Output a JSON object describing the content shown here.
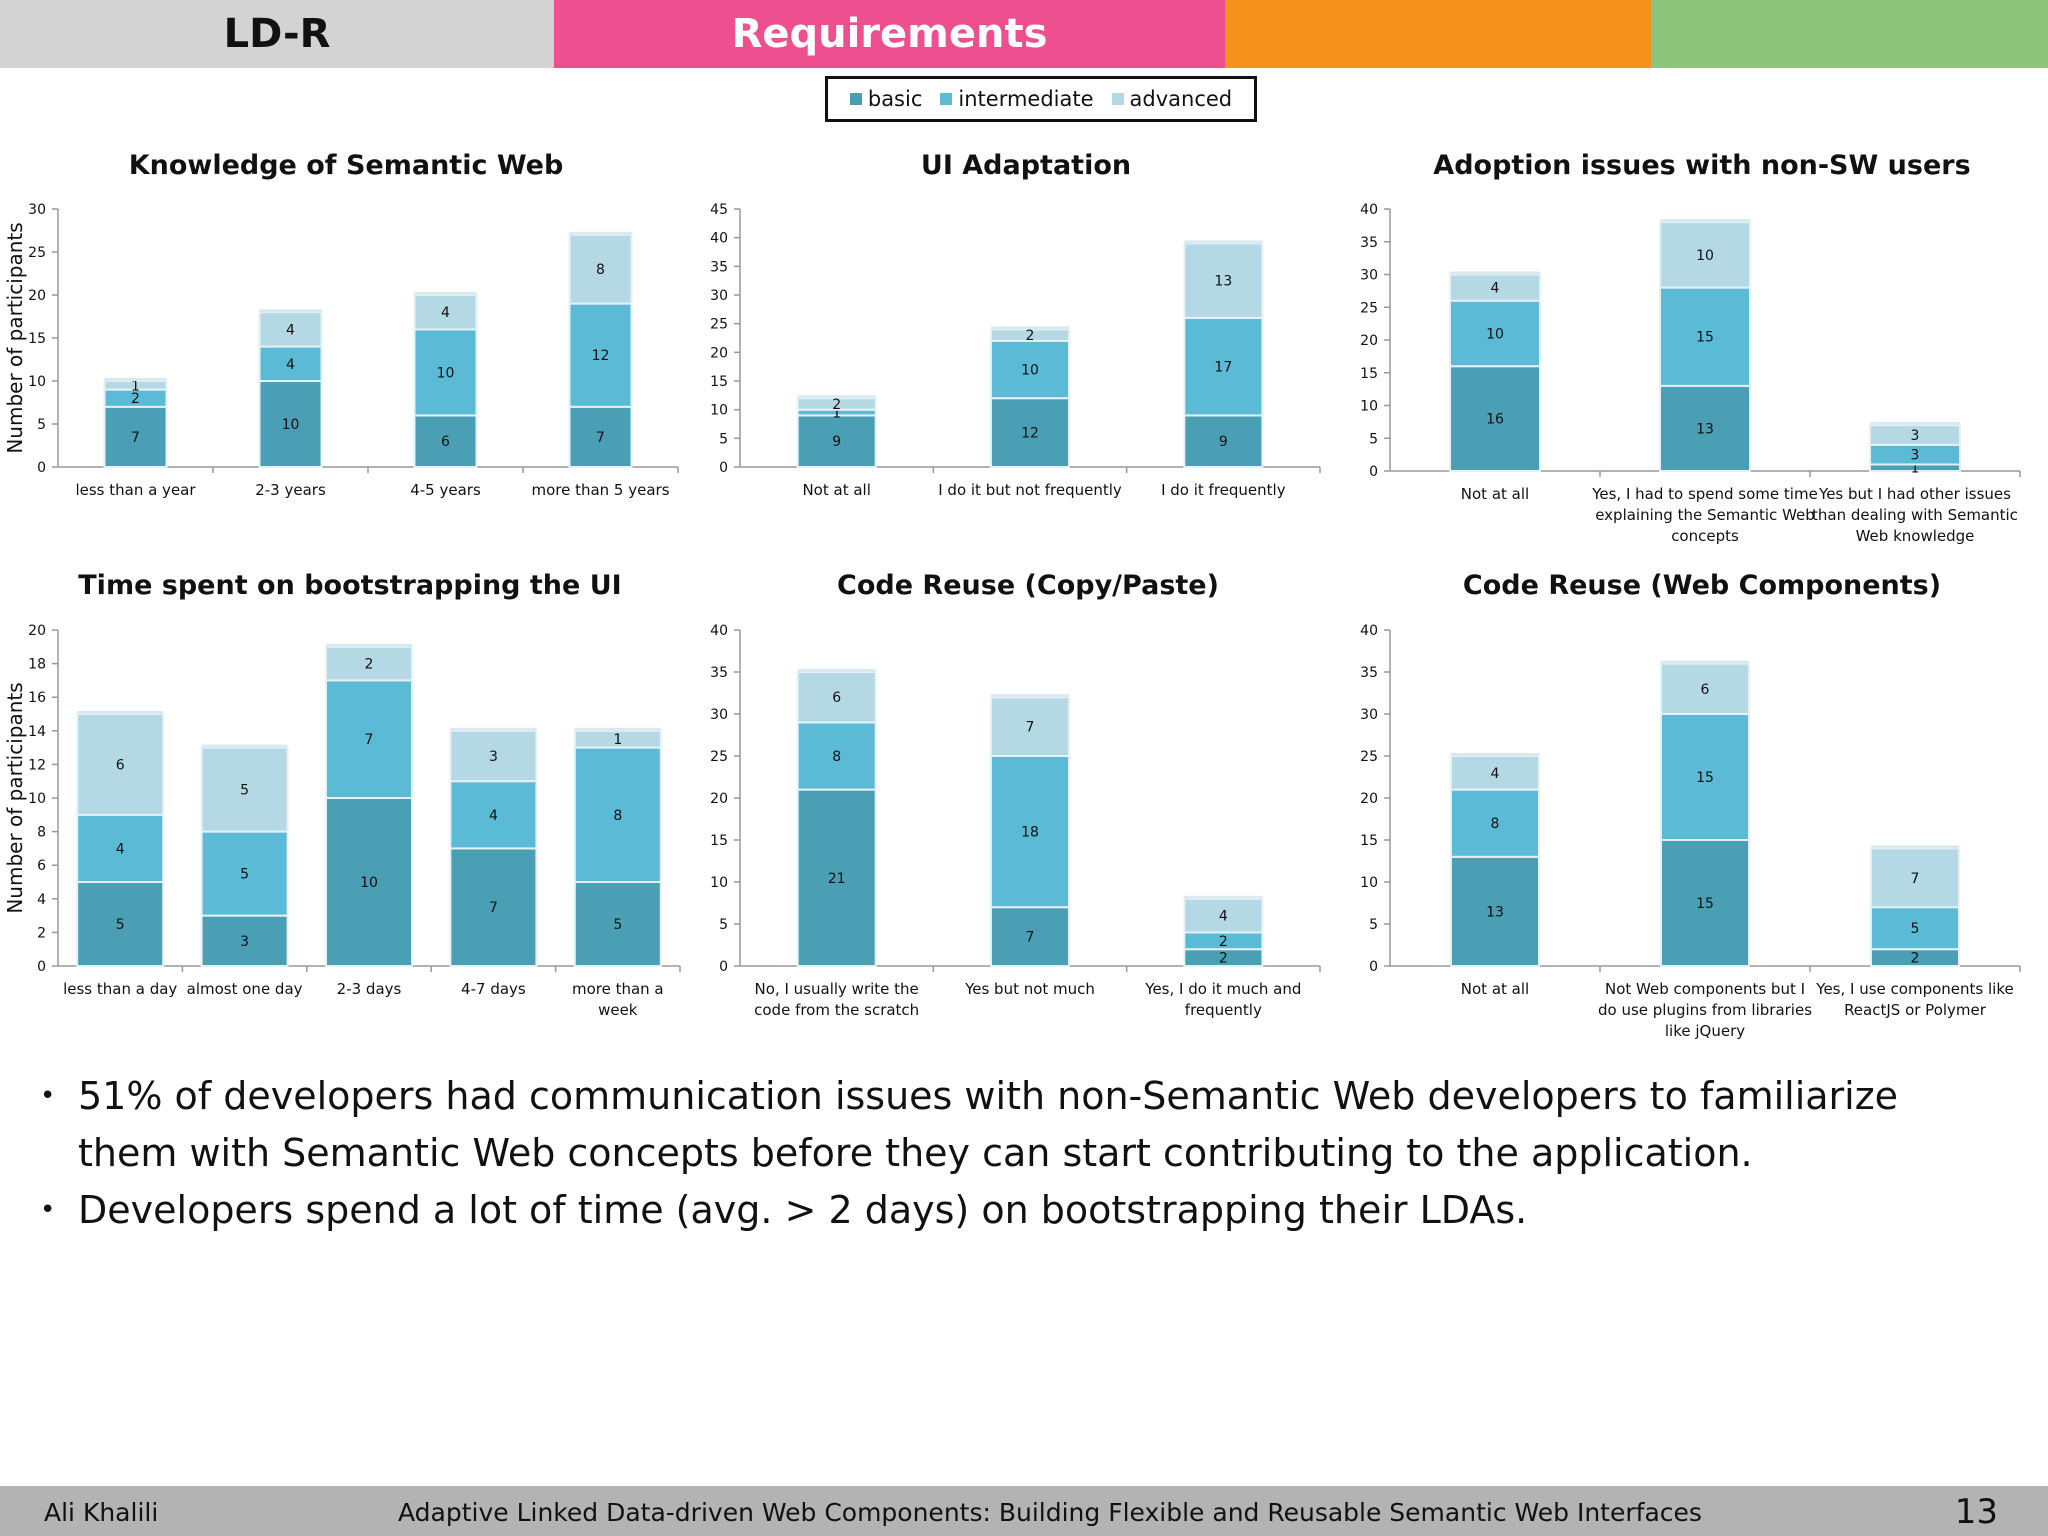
{
  "header": {
    "left_label": "LD-R",
    "title": "Requirements",
    "colors": {
      "gray": "#d3d3d3",
      "pink": "#ee4f8e",
      "orange": "#f5921e",
      "green": "#8dc67b"
    }
  },
  "legend": {
    "items": [
      {
        "label": "basic",
        "color": "#4a9fb5"
      },
      {
        "label": "intermediate",
        "color": "#5bbad5"
      },
      {
        "label": "advanced",
        "color": "#b4d9e4"
      }
    ]
  },
  "chart_data": [
    {
      "type": "bar",
      "stacked": true,
      "title": "Knowledge of Semantic Web",
      "ylabel": "Number of participants",
      "ylim": [
        0,
        30
      ],
      "yticks": [
        0,
        5,
        10,
        15,
        20,
        25,
        30
      ],
      "categories": [
        [
          "less than a year"
        ],
        [
          "2-3 years"
        ],
        [
          "4-5 years"
        ],
        [
          "more than 5 years"
        ]
      ],
      "series": [
        {
          "name": "basic",
          "values": [
            7,
            10,
            6,
            7
          ]
        },
        {
          "name": "intermediate",
          "values": [
            2,
            4,
            10,
            12
          ]
        },
        {
          "name": "advanced",
          "values": [
            1,
            4,
            4,
            8
          ]
        }
      ]
    },
    {
      "type": "bar",
      "stacked": true,
      "title": "UI Adaptation",
      "ylabel": "",
      "ylim": [
        0,
        45
      ],
      "yticks": [
        0,
        5,
        10,
        15,
        20,
        25,
        30,
        35,
        40,
        45
      ],
      "categories": [
        [
          "Not at all"
        ],
        [
          "I do it but not frequently"
        ],
        [
          "I do it frequently"
        ]
      ],
      "series": [
        {
          "name": "basic",
          "values": [
            9,
            12,
            9
          ]
        },
        {
          "name": "intermediate",
          "values": [
            1,
            10,
            17
          ]
        },
        {
          "name": "advanced",
          "values": [
            2,
            2,
            13
          ]
        }
      ]
    },
    {
      "type": "bar",
      "stacked": true,
      "title": "Adoption issues with non-SW users",
      "ylabel": "",
      "ylim": [
        0,
        40
      ],
      "yticks": [
        0,
        5,
        10,
        15,
        20,
        25,
        30,
        35,
        40
      ],
      "categories": [
        [
          "Not at all"
        ],
        [
          "Yes, I had to spend some time",
          "explaining the Semantic Web",
          "concepts"
        ],
        [
          "Yes but I had other issues",
          "than dealing with Semantic",
          "Web knowledge"
        ]
      ],
      "series": [
        {
          "name": "basic",
          "values": [
            16,
            13,
            1
          ]
        },
        {
          "name": "intermediate",
          "values": [
            10,
            15,
            3
          ]
        },
        {
          "name": "advanced",
          "values": [
            4,
            10,
            3
          ]
        }
      ]
    },
    {
      "type": "bar",
      "stacked": true,
      "title": "Time spent on bootstrapping the UI",
      "ylabel": "Number of participants",
      "ylim": [
        0,
        20
      ],
      "yticks": [
        0,
        2,
        4,
        6,
        8,
        10,
        12,
        14,
        16,
        18,
        20
      ],
      "categories": [
        [
          "less than a day"
        ],
        [
          "almost one day"
        ],
        [
          "2-3 days"
        ],
        [
          "4-7 days"
        ],
        [
          "more than a",
          "week"
        ]
      ],
      "series": [
        {
          "name": "basic",
          "values": [
            5,
            3,
            10,
            7,
            5
          ]
        },
        {
          "name": "intermediate",
          "values": [
            4,
            5,
            7,
            4,
            8
          ]
        },
        {
          "name": "advanced",
          "values": [
            6,
            5,
            2,
            3,
            1
          ]
        }
      ]
    },
    {
      "type": "bar",
      "stacked": true,
      "title": "Code Reuse (Copy/Paste)",
      "ylabel": "",
      "ylim": [
        0,
        40
      ],
      "yticks": [
        0,
        5,
        10,
        15,
        20,
        25,
        30,
        35,
        40
      ],
      "categories": [
        [
          "No, I usually write the",
          "code from the scratch"
        ],
        [
          "Yes but not much"
        ],
        [
          "Yes, I do it much and",
          "frequently"
        ]
      ],
      "series": [
        {
          "name": "basic",
          "values": [
            21,
            7,
            2
          ]
        },
        {
          "name": "intermediate",
          "values": [
            8,
            18,
            2
          ]
        },
        {
          "name": "advanced",
          "values": [
            6,
            7,
            4
          ]
        }
      ]
    },
    {
      "type": "bar",
      "stacked": true,
      "title": "Code Reuse (Web Components)",
      "ylabel": "",
      "ylim": [
        0,
        40
      ],
      "yticks": [
        0,
        5,
        10,
        15,
        20,
        25,
        30,
        35,
        40
      ],
      "categories": [
        [
          "Not at all"
        ],
        [
          "Not Web components but I",
          "do use plugins from libraries",
          "like jQuery"
        ],
        [
          "Yes, I use components like",
          "ReactJS or Polymer"
        ]
      ],
      "series": [
        {
          "name": "basic",
          "values": [
            13,
            15,
            2
          ]
        },
        {
          "name": "intermediate",
          "values": [
            8,
            15,
            5
          ]
        },
        {
          "name": "advanced",
          "values": [
            4,
            6,
            7
          ]
        }
      ]
    }
  ],
  "bullets": [
    "51% of developers had communication issues with non-Semantic Web developers to familiarize them with Semantic Web concepts before they can start contributing to the application.",
    "Developers spend a lot of time (avg. > 2 days) on bootstrapping their LDAs."
  ],
  "footer": {
    "author": "Ali Khalili",
    "title": "Adaptive Linked Data-driven Web Components: Building Flexible and Reusable Semantic Web Interfaces",
    "page": "13"
  }
}
